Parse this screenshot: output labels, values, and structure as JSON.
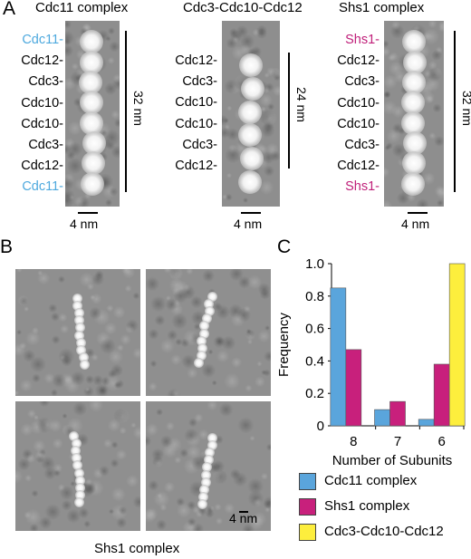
{
  "panel_a": {
    "letter": "A",
    "complexes": [
      {
        "title": "Cdc11 complex",
        "labels": [
          {
            "text": "Cdc11-",
            "color": "#4ea9de"
          },
          {
            "text": "Cdc12-",
            "color": "#000000"
          },
          {
            "text": "Cdc3-",
            "color": "#000000"
          },
          {
            "text": "Cdc10-",
            "color": "#000000"
          },
          {
            "text": "Cdc10-",
            "color": "#000000"
          },
          {
            "text": "Cdc3-",
            "color": "#000000"
          },
          {
            "text": "Cdc12-",
            "color": "#000000"
          },
          {
            "text": "Cdc11-",
            "color": "#4ea9de"
          }
        ],
        "length_label": "32 nm",
        "scale_label": "4 nm"
      },
      {
        "title": "Cdc3-Cdc10-Cdc12",
        "labels": [
          {
            "text": "Cdc12-",
            "color": "#000000"
          },
          {
            "text": "Cdc3-",
            "color": "#000000"
          },
          {
            "text": "Cdc10-",
            "color": "#000000"
          },
          {
            "text": "Cdc10-",
            "color": "#000000"
          },
          {
            "text": "Cdc3-",
            "color": "#000000"
          },
          {
            "text": "Cdc12-",
            "color": "#000000"
          }
        ],
        "length_label": "24 nm",
        "scale_label": "4 nm"
      },
      {
        "title": "Shs1 complex",
        "labels": [
          {
            "text": "Shs1-",
            "color": "#c0207a"
          },
          {
            "text": "Cdc12-",
            "color": "#000000"
          },
          {
            "text": "Cdc3-",
            "color": "#000000"
          },
          {
            "text": "Cdc10-",
            "color": "#000000"
          },
          {
            "text": "Cdc10-",
            "color": "#000000"
          },
          {
            "text": "Cdc3-",
            "color": "#000000"
          },
          {
            "text": "Cdc12-",
            "color": "#000000"
          },
          {
            "text": "Shs1-",
            "color": "#c0207a"
          }
        ],
        "length_label": "32 nm",
        "scale_label": "4 nm"
      }
    ]
  },
  "panel_b": {
    "letter": "B",
    "caption": "Shs1 complex",
    "scale_label": "4 nm"
  },
  "panel_c": {
    "letter": "C"
  },
  "chart_data": {
    "type": "bar",
    "categories": [
      "8",
      "7",
      "6"
    ],
    "series": [
      {
        "name": "Cdc11 complex",
        "color": "#5aa5dc",
        "values": [
          0.85,
          0.1,
          0.04
        ]
      },
      {
        "name": "Shs1 complex",
        "color": "#c8207c",
        "values": [
          0.47,
          0.15,
          0.38
        ]
      },
      {
        "name": "Cdc3-Cdc10-Cdc12",
        "color": "#fdee3d",
        "values": [
          0.0,
          0.0,
          1.0
        ]
      }
    ],
    "xlabel": "Number of Subunits",
    "ylabel": "Frequency",
    "ylim": [
      0,
      1.0
    ],
    "yticks": [
      "0",
      "0.2",
      "0.4",
      "0.6",
      "0.8",
      "1.0"
    ],
    "grid": false,
    "legend_position": "bottom"
  }
}
